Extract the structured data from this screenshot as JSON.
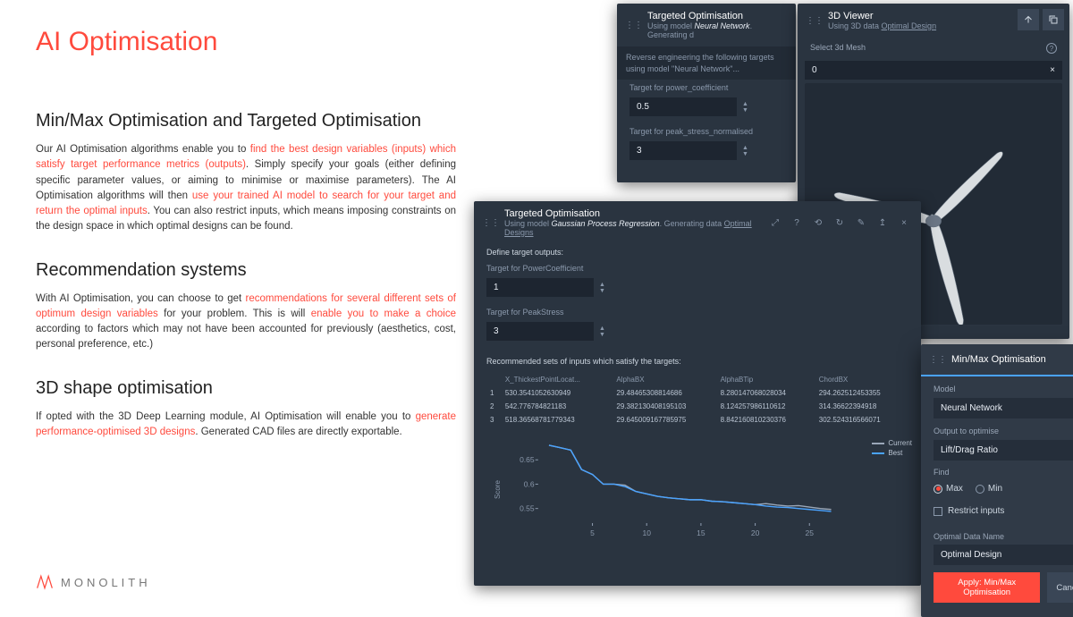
{
  "page": {
    "title": "AI Optimisation",
    "logo_text": "MONOLITH"
  },
  "sections": {
    "s1_h": "Min/Max Optimisation and Targeted Optimisation",
    "s1_a": "Our AI Optimisation algorithms enable you to ",
    "s1_hl1": "find the best design variables (inputs) which satisfy target performance metrics (outputs)",
    "s1_b": ". Simply specify your goals (either defining specific parameter values, or aiming to minimise or maximise parameters). The AI Optimisation algorithms will then ",
    "s1_hl2": "use your trained AI model to search for your target and return the optimal inputs",
    "s1_c": ". You can also restrict inputs, which means imposing constraints on the design space in which optimal designs can be found.",
    "s2_h": "Recommendation systems",
    "s2_a": "With AI Optimisation, you can choose to get ",
    "s2_hl1": "recommendations for several different sets of optimum design variables",
    "s2_b": " for your problem. This is will ",
    "s2_hl2": "enable you to make a choice",
    "s2_c": " according to factors which may not have been accounted for previously (aesthetics, cost, personal preference, etc.)",
    "s3_h": "3D shape optimisation",
    "s3_a": "If opted with the 3D Deep Learning module, AI Optimisation will enable you to ",
    "s3_hl1": "generate performance-optimised 3D designs",
    "s3_b": ". Generated CAD files are directly exportable."
  },
  "panelA": {
    "title": "Targeted Optimisation",
    "sub_a": "Using model ",
    "sub_model": "Neural Network",
    "sub_b": ". Generating d",
    "desc1": "Reverse engineering the following targets",
    "desc2": "using model \"Neural Network\"...",
    "t1_label": "Target for power_coefficient",
    "t1_value": "0.5",
    "t2_label": "Target for peak_stress_normalised",
    "t2_value": "3"
  },
  "panelB": {
    "title": "3D Viewer",
    "sub_a": "Using 3D data ",
    "sub_data": "Optimal Design",
    "select_label": "Select 3d Mesh",
    "select_value": "0",
    "propeller": {
      "blade_fill": "#d9dde0",
      "blade_stroke": "#5e6a78",
      "hub_fill": "#6b7685"
    }
  },
  "panelC": {
    "title": "Targeted Optimisation",
    "sub_a": "Using model ",
    "sub_model": "Gaussian Process Regression",
    "sub_b": ". Generating data ",
    "sub_data": "Optimal Designs",
    "define": "Define target outputs:",
    "t1_label": "Target for PowerCoefficient",
    "t1_value": "1",
    "t2_label": "Target for PeakStress",
    "t2_value": "3",
    "rec_label": "Recommended sets of inputs which satisfy the targets:",
    "table": {
      "cols": [
        "",
        "X_ThickestPointLocat...",
        "AlphaBX",
        "AlphaBTip",
        "ChordBX"
      ],
      "rows": [
        [
          "1",
          "530.3541052630949",
          "29.48465308814686",
          "8.280147068028034",
          "294.262512453355"
        ],
        [
          "2",
          "542.776784821183",
          "29.382130408195103",
          "8.124257986110612",
          "314.36622394918"
        ],
        [
          "3",
          "518.36568781779343",
          "29.645009167785975",
          "8.842160810230376",
          "302.524316566071"
        ]
      ]
    },
    "chart": {
      "type": "line",
      "ylabel": "Score",
      "xticks": [
        5,
        10,
        15,
        20,
        25
      ],
      "yticks": [
        0.55,
        0.6,
        0.65
      ],
      "ylim": [
        0.52,
        0.7
      ],
      "xlim": [
        0,
        28
      ],
      "series": [
        {
          "name": "Current",
          "color": "#9aa7b8",
          "points": [
            [
              1,
              0.68
            ],
            [
              2,
              0.675
            ],
            [
              3,
              0.67
            ],
            [
              4,
              0.63
            ],
            [
              5,
              0.62
            ],
            [
              6,
              0.6
            ],
            [
              7,
              0.6
            ],
            [
              8,
              0.598
            ],
            [
              9,
              0.585
            ],
            [
              10,
              0.58
            ],
            [
              11,
              0.575
            ],
            [
              12,
              0.572
            ],
            [
              13,
              0.57
            ],
            [
              14,
              0.568
            ],
            [
              15,
              0.568
            ],
            [
              16,
              0.565
            ],
            [
              17,
              0.564
            ],
            [
              18,
              0.562
            ],
            [
              19,
              0.56
            ],
            [
              20,
              0.558
            ],
            [
              21,
              0.56
            ],
            [
              22,
              0.557
            ],
            [
              23,
              0.555
            ],
            [
              24,
              0.556
            ],
            [
              25,
              0.553
            ],
            [
              26,
              0.55
            ],
            [
              27,
              0.548
            ]
          ]
        },
        {
          "name": "Best",
          "color": "#4aa3ff",
          "points": [
            [
              1,
              0.68
            ],
            [
              2,
              0.675
            ],
            [
              3,
              0.67
            ],
            [
              4,
              0.63
            ],
            [
              5,
              0.62
            ],
            [
              6,
              0.6
            ],
            [
              7,
              0.6
            ],
            [
              8,
              0.595
            ],
            [
              9,
              0.585
            ],
            [
              10,
              0.58
            ],
            [
              11,
              0.575
            ],
            [
              12,
              0.572
            ],
            [
              13,
              0.57
            ],
            [
              14,
              0.568
            ],
            [
              15,
              0.568
            ],
            [
              16,
              0.565
            ],
            [
              17,
              0.564
            ],
            [
              18,
              0.562
            ],
            [
              19,
              0.56
            ],
            [
              20,
              0.558
            ],
            [
              21,
              0.555
            ],
            [
              22,
              0.553
            ],
            [
              23,
              0.552
            ],
            [
              24,
              0.55
            ],
            [
              25,
              0.548
            ],
            [
              26,
              0.546
            ],
            [
              27,
              0.544
            ]
          ]
        }
      ]
    }
  },
  "panelD": {
    "title": "Min/Max Optimisation",
    "model_label": "Model",
    "model_value": "Neural Network",
    "output_label": "Output to optimise",
    "output_value": "Lift/Drag Ratio",
    "find_label": "Find",
    "opt_max": "Max",
    "opt_min": "Min",
    "restrict": "Restrict inputs",
    "name_label": "Optimal Data Name",
    "name_value": "Optimal Design",
    "apply": "Apply: Min/Max Optimisation",
    "cancel": "Cancel"
  }
}
